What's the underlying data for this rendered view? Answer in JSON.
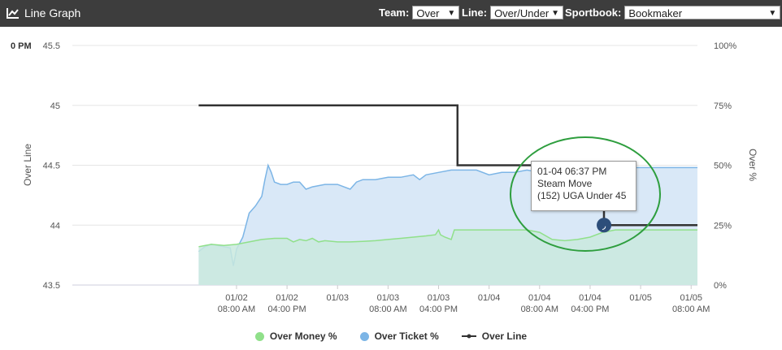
{
  "header": {
    "title": "Line Graph",
    "team_label": "Team:",
    "team_value": "Over",
    "line_label": "Line:",
    "line_value": "Over/Under",
    "sportbook_label": "Sportbook:",
    "sportbook_value": "Bookmaker"
  },
  "tooltip": {
    "line1": "01-04 06:37 PM",
    "line2": "Steam Move",
    "line3": "(152) UGA Under 45"
  },
  "chart_data": {
    "type": "line",
    "corner_label": "0 PM",
    "ylabel_left": "Over Line",
    "ylabel_right": "Over %",
    "y_left_range": [
      43.5,
      45.5
    ],
    "y_left_ticks": [
      "45.5",
      "45",
      "44.5",
      "44",
      "43.5"
    ],
    "y_right_range": [
      0,
      100
    ],
    "y_right_ticks": [
      "100%",
      "75%",
      "50%",
      "25%",
      "0%"
    ],
    "x_range": [
      "01/01 06:00 AM",
      "01/05 09:00 AM"
    ],
    "x_ticks": [
      {
        "t": 26,
        "l1": "01/02",
        "l2": "08:00 AM"
      },
      {
        "t": 34,
        "l1": "01/02",
        "l2": "04:00 PM"
      },
      {
        "t": 42,
        "l1": "01/03",
        "l2": ""
      },
      {
        "t": 50,
        "l1": "01/03",
        "l2": "08:00 AM"
      },
      {
        "t": 58,
        "l1": "01/03",
        "l2": "04:00 PM"
      },
      {
        "t": 66,
        "l1": "01/04",
        "l2": ""
      },
      {
        "t": 74,
        "l1": "01/04",
        "l2": "08:00 AM"
      },
      {
        "t": 82,
        "l1": "01/04",
        "l2": "04:00 PM"
      },
      {
        "t": 90,
        "l1": "01/05",
        "l2": ""
      },
      {
        "t": 98,
        "l1": "01/05",
        "l2": "08:00 AM"
      }
    ],
    "grid": "horizontal",
    "legend_position": "bottom",
    "series": [
      {
        "name": "Over Money %",
        "color": "#90e08a",
        "fill": "#c9e9de",
        "axis": "right",
        "points": [
          [
            20,
            16
          ],
          [
            22,
            17
          ],
          [
            24,
            16.5
          ],
          [
            26,
            17
          ],
          [
            28,
            18
          ],
          [
            30,
            19
          ],
          [
            32,
            19.5
          ],
          [
            34,
            19.5
          ],
          [
            35,
            18
          ],
          [
            36,
            19
          ],
          [
            37,
            18.5
          ],
          [
            38,
            19.5
          ],
          [
            39,
            18
          ],
          [
            40,
            18.5
          ],
          [
            42,
            18
          ],
          [
            44,
            18
          ],
          [
            46,
            18.2
          ],
          [
            48,
            18.5
          ],
          [
            50,
            19
          ],
          [
            52,
            19.5
          ],
          [
            54,
            20
          ],
          [
            56,
            20.5
          ],
          [
            57.5,
            21
          ],
          [
            58,
            23
          ],
          [
            58.3,
            21
          ],
          [
            59,
            20
          ],
          [
            60,
            19
          ],
          [
            60.5,
            23
          ],
          [
            62,
            23
          ],
          [
            66,
            23
          ],
          [
            70,
            23
          ],
          [
            72,
            23
          ],
          [
            74,
            22
          ],
          [
            76,
            19
          ],
          [
            78,
            18.5
          ],
          [
            80,
            19
          ],
          [
            82,
            20
          ],
          [
            84,
            22
          ],
          [
            86,
            23
          ],
          [
            90,
            23
          ],
          [
            94,
            23
          ],
          [
            99,
            23
          ]
        ]
      },
      {
        "name": "Over Ticket %",
        "color": "#7cb5e6",
        "fill": "#d9e8f7",
        "axis": "right",
        "points": [
          [
            20,
            14
          ],
          [
            21,
            16
          ],
          [
            22,
            17
          ],
          [
            23,
            16.5
          ],
          [
            24,
            16
          ],
          [
            25,
            15.5
          ],
          [
            25.5,
            8
          ],
          [
            26,
            15
          ],
          [
            27,
            20
          ],
          [
            27.5,
            25
          ],
          [
            28,
            30
          ],
          [
            29,
            33
          ],
          [
            30,
            37
          ],
          [
            30.5,
            44
          ],
          [
            31,
            50
          ],
          [
            31.5,
            47
          ],
          [
            32,
            43
          ],
          [
            33,
            42
          ],
          [
            34,
            42
          ],
          [
            35,
            43
          ],
          [
            36,
            43
          ],
          [
            37,
            40
          ],
          [
            38,
            41
          ],
          [
            40,
            42
          ],
          [
            42,
            42
          ],
          [
            44,
            40
          ],
          [
            45,
            43
          ],
          [
            46,
            44
          ],
          [
            48,
            44
          ],
          [
            50,
            45
          ],
          [
            52,
            45
          ],
          [
            54,
            46
          ],
          [
            55,
            44
          ],
          [
            56,
            46
          ],
          [
            58,
            47
          ],
          [
            60,
            48
          ],
          [
            62,
            48
          ],
          [
            64,
            48
          ],
          [
            66,
            46
          ],
          [
            68,
            47
          ],
          [
            70,
            47
          ],
          [
            72,
            48
          ],
          [
            74,
            47
          ],
          [
            76,
            46
          ],
          [
            78,
            46
          ],
          [
            80,
            47
          ],
          [
            82,
            47
          ],
          [
            84,
            48
          ],
          [
            86,
            48
          ],
          [
            88,
            49
          ],
          [
            90,
            49
          ],
          [
            92,
            49
          ],
          [
            94,
            49
          ],
          [
            99,
            49
          ]
        ]
      },
      {
        "name": "Over Line",
        "color": "#333333",
        "axis": "left",
        "points": [
          [
            20,
            45
          ],
          [
            61,
            45
          ],
          [
            61,
            44.5
          ],
          [
            84.2,
            44.5
          ],
          [
            84.2,
            44
          ],
          [
            99,
            44
          ]
        ]
      }
    ]
  }
}
